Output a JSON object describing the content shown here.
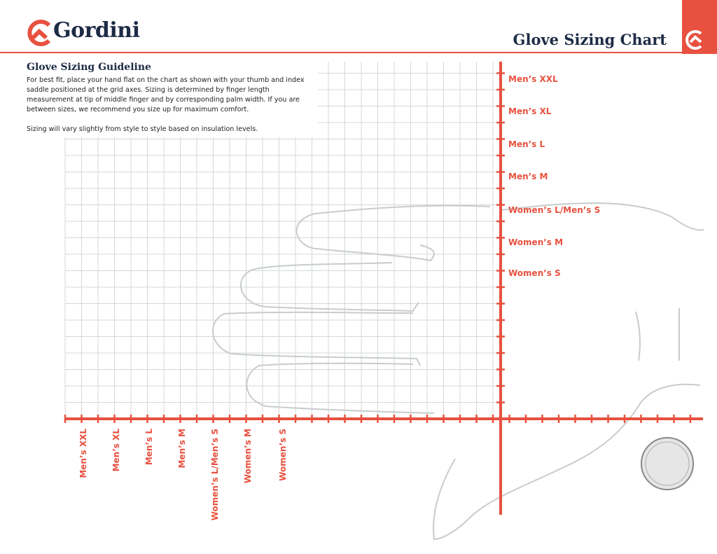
{
  "header": {
    "brand": "Gordini",
    "title": "Glove Sizing Chart"
  },
  "guideline": {
    "title": "Glove Sizing Guideline",
    "paragraphs": [
      "For best fit, place your hand flat on the chart as shown with your thumb and index saddle positioned at the grid axes. Sizing is determined by finger length measurement at tip of middle finger and by corresponding palm width. If you are between sizes, we recommend you size up for maximum comfort.",
      "Sizing will vary slightly from style to style based on insulation levels."
    ]
  },
  "vertical_axis": {
    "labels": [
      "Men’s XXL",
      "Men’s XL",
      "Men’s L",
      "Men’s M",
      "Women’s L/Men’s S",
      "Women’s M",
      "Women’s S"
    ]
  },
  "horizontal_axis": {
    "labels": [
      "Men’s XXL",
      "Men’s XL",
      "Men’s L",
      "Men’s M",
      "Women’s L/Men’s S",
      "Women’s M",
      "Women’s S"
    ]
  }
}
